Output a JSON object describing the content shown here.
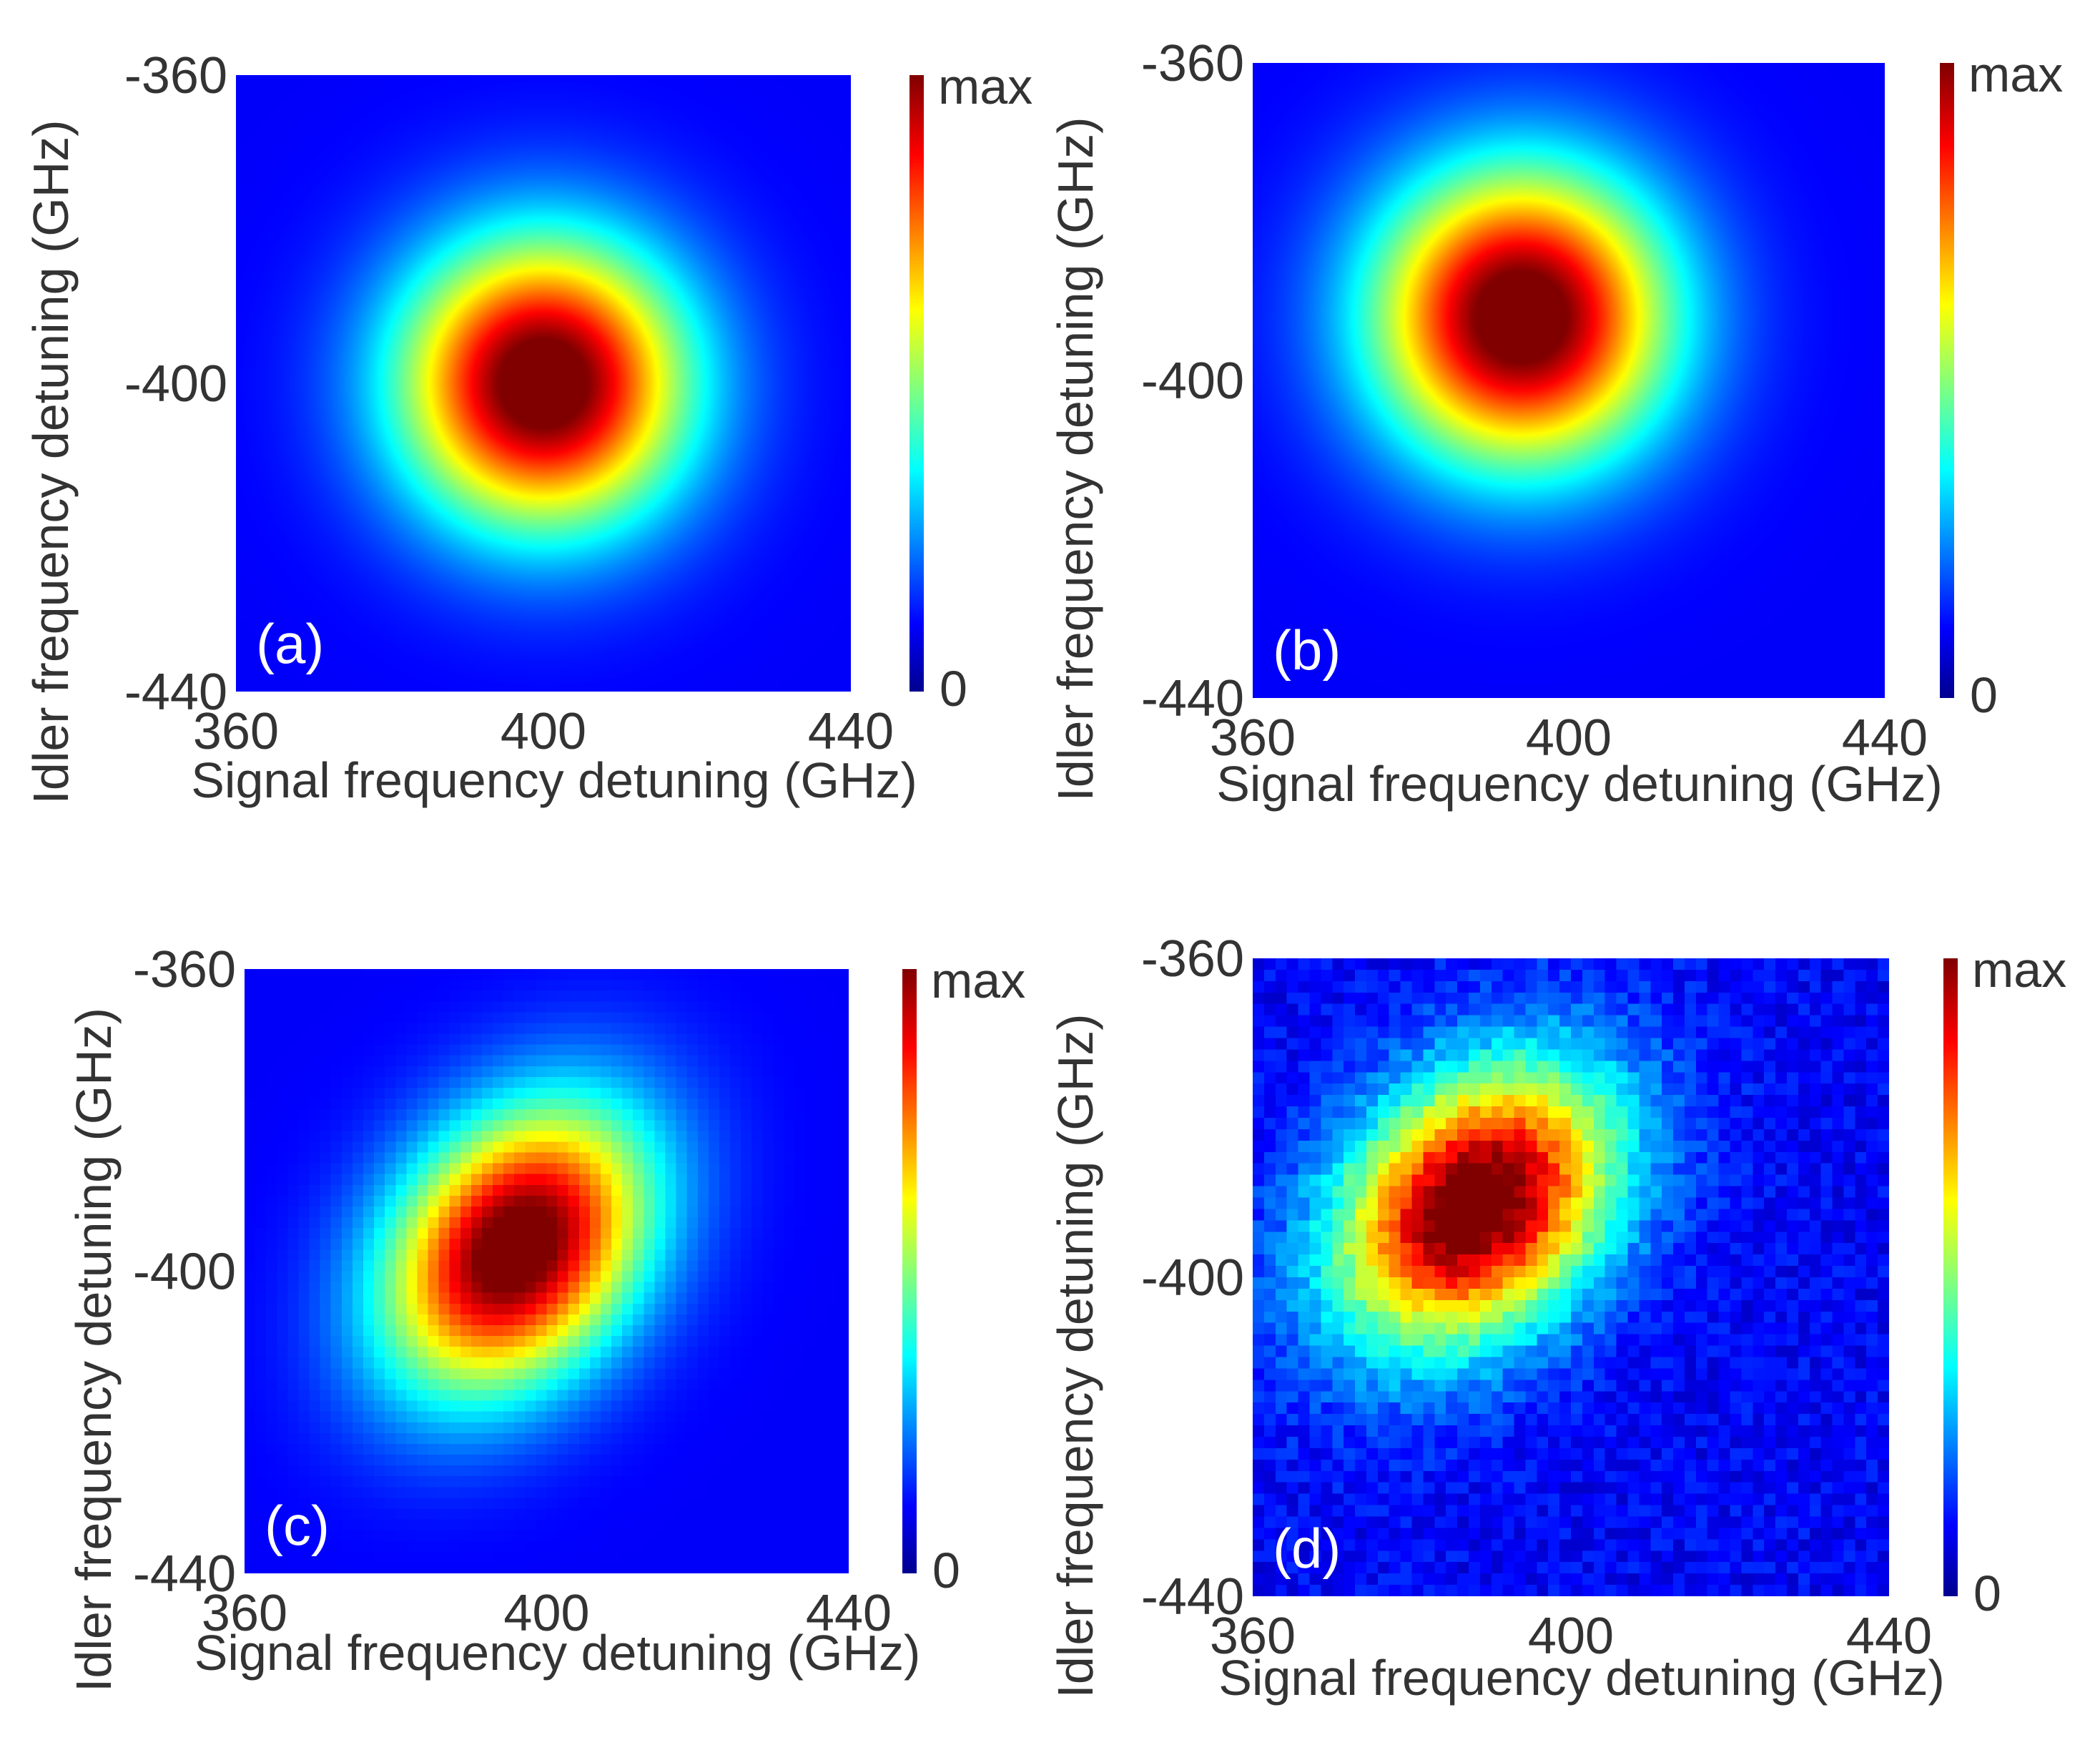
{
  "figure": {
    "shared": {
      "colormap": "jet",
      "colorbar_labels": {
        "max": "max",
        "min": "0"
      },
      "x_ticks": [
        "360",
        "400",
        "440"
      ],
      "y_ticks": [
        "-360",
        "-400",
        "-440"
      ]
    }
  },
  "chart_data": [
    {
      "panel": "(a)",
      "type": "heatmap",
      "title": "",
      "xlabel": "Signal frequency detuning (GHz)",
      "ylabel": "Idler frequency detuning (GHz)",
      "xlim": [
        360,
        440
      ],
      "ylim": [
        -440,
        -360
      ],
      "x_ticks": [
        360,
        400,
        440
      ],
      "y_ticks": [
        -360,
        -400,
        -440
      ],
      "colorbar": [
        "0",
        "max"
      ],
      "peak": {
        "x": 400,
        "y": -400
      },
      "sigma_x": 13,
      "sigma_y": 13,
      "correlation": 0.0,
      "pixelated": false,
      "noise": 0
    },
    {
      "panel": "(b)",
      "type": "heatmap",
      "title": "",
      "xlabel": "Signal frequency detuning (GHz)",
      "ylabel": "Idler frequency detuning (GHz)",
      "xlim": [
        360,
        440
      ],
      "ylim": [
        -440,
        -360
      ],
      "x_ticks": [
        360,
        400,
        440
      ],
      "y_ticks": [
        -360,
        -400,
        -440
      ],
      "colorbar": [
        "0",
        "max"
      ],
      "peak": {
        "x": 394,
        "y": -392
      },
      "sigma_x": 13,
      "sigma_y": 13,
      "correlation": 0.0,
      "pixelated": false,
      "noise": 0
    },
    {
      "panel": "(c)",
      "type": "heatmap",
      "title": "",
      "xlabel": "Signal frequency detuning (GHz)",
      "ylabel": "Idler frequency detuning (GHz)",
      "xlim": [
        360,
        440
      ],
      "ylim": [
        -440,
        -360
      ],
      "x_ticks": [
        360,
        400,
        440
      ],
      "y_ticks": [
        -360,
        -400,
        -440
      ],
      "colorbar": [
        "0",
        "max"
      ],
      "peak": {
        "x": 396,
        "y": -397
      },
      "sigma_x": 12,
      "sigma_y": 13,
      "correlation": 0.3,
      "pixelated": true,
      "noise": 0
    },
    {
      "panel": "(d)",
      "type": "heatmap",
      "title": "",
      "xlabel": "Signal frequency detuning (GHz)",
      "ylabel": "Idler frequency detuning (GHz)",
      "xlim": [
        360,
        440
      ],
      "ylim": [
        -440,
        -360
      ],
      "x_ticks": [
        360,
        400,
        440
      ],
      "y_ticks": [
        -360,
        -400,
        -440
      ],
      "colorbar": [
        "0",
        "max"
      ],
      "peak": {
        "x": 388,
        "y": -391
      },
      "sigma_x": 12,
      "sigma_y": 12,
      "correlation": 0.3,
      "pixelated": true,
      "noise": 0.05
    }
  ]
}
